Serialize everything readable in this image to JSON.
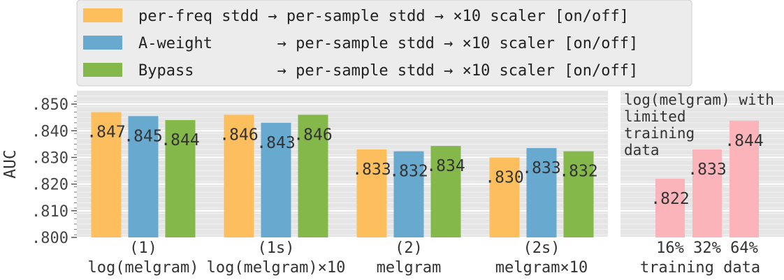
{
  "legend": {
    "placement": "top",
    "entries": [
      {
        "label": "per-freq stdd → per-sample stdd → ×10 scaler [on/off]",
        "color": "#fdbf5e"
      },
      {
        "label": "A-weight       → per-sample stdd → ×10 scaler [on/off]",
        "color": "#67a9cf"
      },
      {
        "label": "Bypass         → per-sample stdd → ×10 scaler [on/off]",
        "color": "#84b84a"
      }
    ]
  },
  "chart_data": [
    {
      "type": "bar",
      "ylabel": "AUC",
      "ylim": [
        0.8,
        0.855
      ],
      "yticks": [
        {
          "value": 0.8,
          "label": ".800"
        },
        {
          "value": 0.81,
          "label": ".810"
        },
        {
          "value": 0.82,
          "label": ".820"
        },
        {
          "value": 0.83,
          "label": ".830"
        },
        {
          "value": 0.84,
          "label": ".840"
        },
        {
          "value": 0.85,
          "label": ".850"
        }
      ],
      "grid": true,
      "categories": [
        {
          "line1": "(1)",
          "line2": "log(melgram)"
        },
        {
          "line1": "(1s)",
          "line2": "log(melgram)×10"
        },
        {
          "line1": "(2)",
          "line2": "melgram"
        },
        {
          "line1": "(2s)",
          "line2": "melgram×10"
        }
      ],
      "series": [
        {
          "color": "#fdbf5e",
          "values": [
            0.847,
            0.846,
            0.833,
            0.83
          ],
          "labels": [
            ".847",
            ".846",
            ".833",
            ".830"
          ]
        },
        {
          "color": "#67a9cf",
          "values": [
            0.8455,
            0.843,
            0.8323,
            0.8335
          ],
          "labels": [
            ".845",
            ".843",
            ".832",
            ".833"
          ]
        },
        {
          "color": "#84b84a",
          "values": [
            0.844,
            0.846,
            0.8343,
            0.8323
          ],
          "labels": [
            ".844",
            ".846",
            ".834",
            ".832"
          ]
        }
      ]
    },
    {
      "type": "bar",
      "annotation": [
        "log(melgram) with",
        "limited",
        "training",
        "data"
      ],
      "categories": [
        "16%",
        "32%",
        "64%"
      ],
      "xlabel": "training data",
      "series": [
        {
          "color": "#fbb4b9",
          "values": [
            0.822,
            0.833,
            0.8438
          ],
          "labels": [
            ".822",
            ".833",
            ".844"
          ]
        }
      ]
    }
  ]
}
